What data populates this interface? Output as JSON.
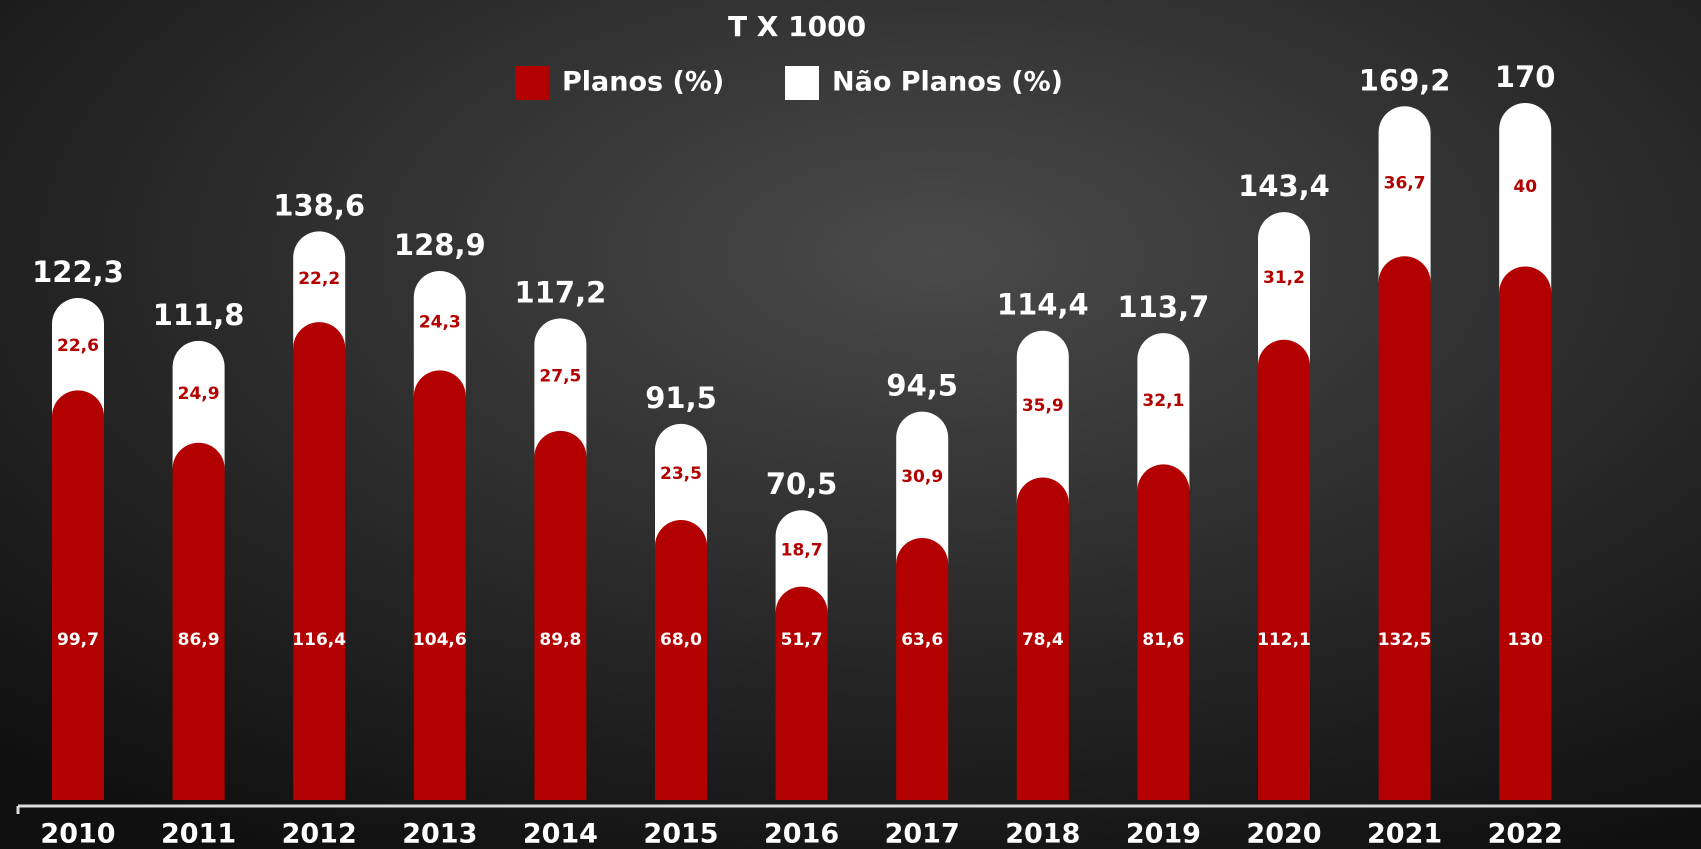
{
  "chart_data": {
    "type": "stacked-bar",
    "title": "T X 1000",
    "categories": [
      "2010",
      "2011",
      "2012",
      "2013",
      "2014",
      "2015",
      "2016",
      "2017",
      "2018",
      "2019",
      "2020",
      "2021",
      "2022"
    ],
    "series": [
      {
        "name": "Planos (%)",
        "color": "#b30000",
        "values": [
          99.7,
          86.9,
          116.4,
          104.6,
          89.8,
          68.0,
          51.7,
          63.6,
          78.4,
          81.6,
          112.1,
          132.5,
          130
        ],
        "value_labels": [
          "99,7",
          "86,9",
          "116,4",
          "104,6",
          "89,8",
          "68,0",
          "51,7",
          "63,6",
          "78,4",
          "81,6",
          "112,1",
          "132,5",
          "130"
        ]
      },
      {
        "name": "Não Planos (%)",
        "color": "#ffffff",
        "values": [
          22.6,
          24.9,
          22.2,
          24.3,
          27.5,
          23.5,
          18.7,
          30.9,
          35.9,
          32.1,
          31.2,
          36.7,
          40
        ],
        "value_labels": [
          "22,6",
          "24,9",
          "22,2",
          "24,3",
          "27,5",
          "23,5",
          "18,7",
          "30,9",
          "35,9",
          "32,1",
          "31,2",
          "36,7",
          "40"
        ]
      }
    ],
    "total_labels": [
      "122,3",
      "111,8",
      "138,6",
      "128,9",
      "117,2",
      "91,5",
      "70,5",
      "94,5",
      "114,4",
      "113,7",
      "143,4",
      "169,2",
      "170"
    ]
  }
}
